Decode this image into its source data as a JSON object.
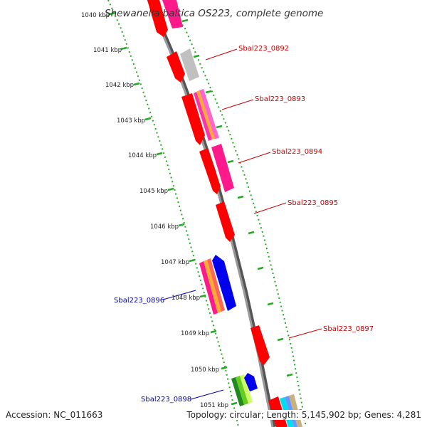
{
  "title": "Shewanella baltica OS223, complete genome",
  "footer": {
    "accession": "Accession: NC_011663",
    "summary": "Topology: circular; Length: 5,145,902 bp; Genes: 4,281"
  },
  "colors": {
    "backbone": "#8a8a8a",
    "scale_ticks": "#22aa22",
    "forward_label": "#cc0000",
    "reverse_label": "#0000aa"
  },
  "ruler_labels": [
    "1040 kbp",
    "1041 kbp",
    "1042 kbp",
    "1043 kbp",
    "1044 kbp",
    "1045 kbp",
    "1046 kbp",
    "1047 kbp",
    "1048 kbp",
    "1049 kbp",
    "1050 kbp",
    "1051 kbp"
  ],
  "gene_labels": [
    "Sbal223_0892",
    "Sbal223_0893",
    "Sbal223_0894",
    "Sbal223_0895",
    "Sbal223_0896",
    "Sbal223_0897",
    "Sbal223_0898"
  ]
}
